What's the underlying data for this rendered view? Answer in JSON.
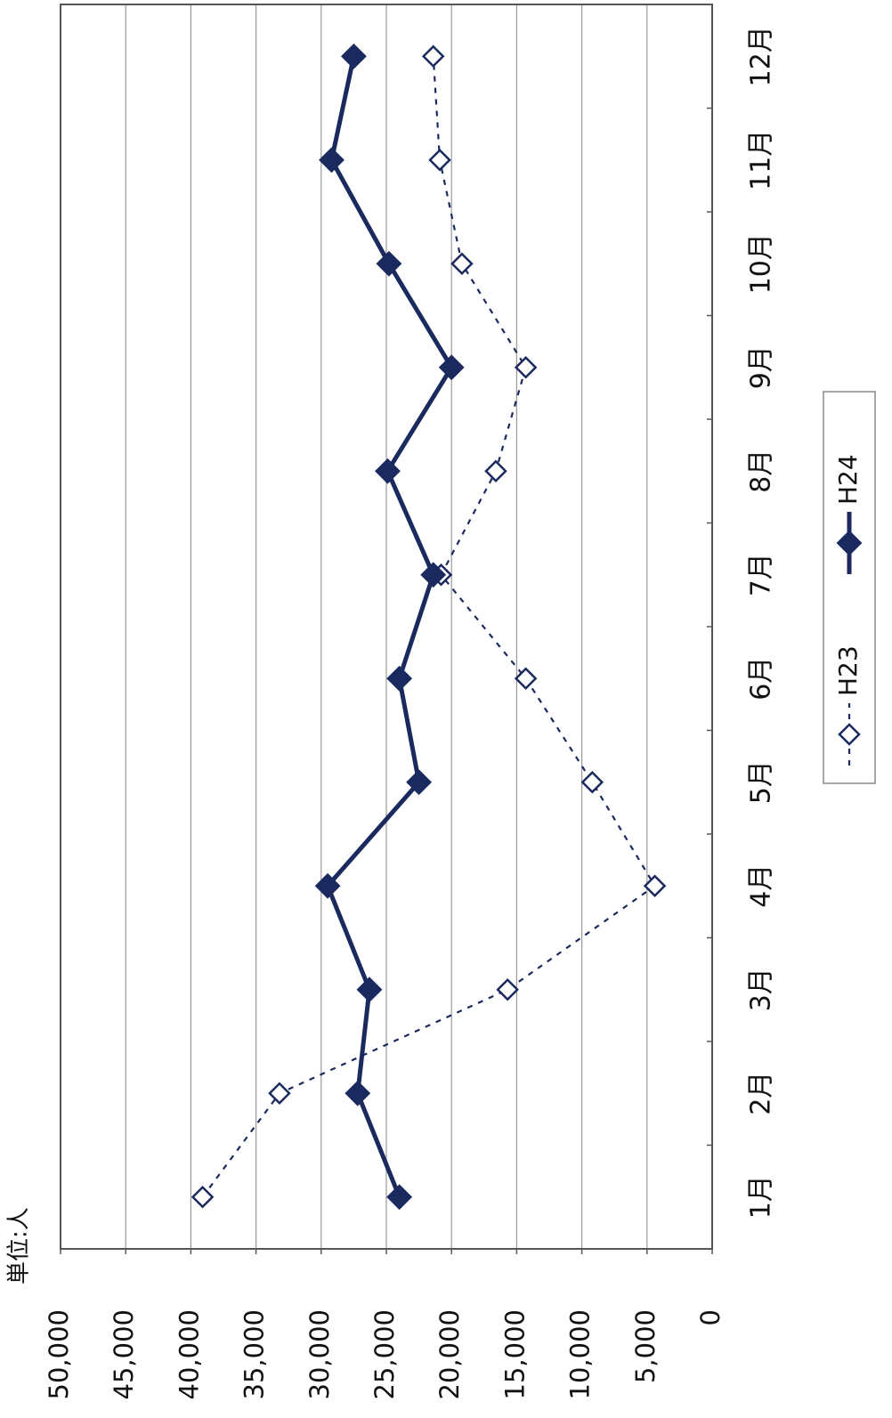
{
  "chart_data": {
    "type": "line",
    "unit_label": "単位:人",
    "categories": [
      "1月",
      "2月",
      "3月",
      "4月",
      "5月",
      "6月",
      "7月",
      "8月",
      "9月",
      "10月",
      "11月",
      "12月"
    ],
    "series": [
      {
        "name": "H23",
        "color": "#1b2a5e",
        "style": "dashed",
        "marker": "open-diamond",
        "values": [
          39100,
          33200,
          15700,
          4400,
          9200,
          14300,
          20800,
          16600,
          14300,
          19200,
          20900,
          21400
        ]
      },
      {
        "name": "H24",
        "color": "#1b2a5e",
        "style": "solid",
        "marker": "filled-diamond",
        "values": [
          24000,
          27200,
          26300,
          29500,
          22500,
          24000,
          21400,
          24900,
          20000,
          24800,
          29200,
          27500
        ]
      }
    ],
    "ylim": [
      0,
      50000
    ],
    "yticks": [
      0,
      {
        "value": 5000,
        "label": "5,000"
      },
      {
        "value": 10000,
        "label": "10,000"
      },
      {
        "value": 15000,
        "label": "15,000"
      },
      {
        "value": 20000,
        "label": "20,000"
      },
      {
        "value": 25000,
        "label": "25,000"
      },
      {
        "value": 30000,
        "label": "30,000"
      },
      {
        "value": 35000,
        "label": "35,000"
      },
      {
        "value": 40000,
        "label": "40,000"
      },
      {
        "value": 45000,
        "label": "45,000"
      },
      {
        "value": 50000,
        "label": "50,000"
      }
    ],
    "grid": true,
    "orientation": "rotated",
    "legend": "bottom"
  }
}
